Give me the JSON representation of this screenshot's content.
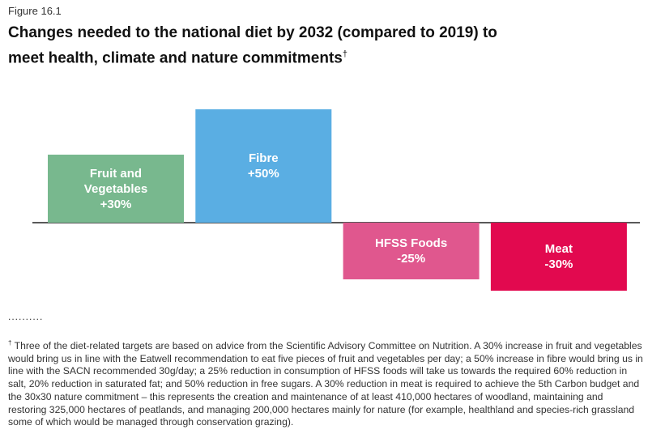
{
  "figure_label": "Figure 16.1",
  "chart_data": {
    "type": "bar",
    "title": "Changes needed to the national diet by 2032 (compared to 2019) to meet health, climate and nature commitments",
    "title_marker": "†",
    "categories": [
      "Fruit and Vegetables",
      "Fibre",
      "HFSS Foods",
      "Meat"
    ],
    "values": [
      30,
      50,
      -25,
      -30
    ],
    "value_labels": [
      "+30%",
      "+50%",
      "-25%",
      "-30%"
    ],
    "colors": [
      "#78b88e",
      "#5aaee3",
      "#e0578e",
      "#e2094f"
    ]
  },
  "footnote_marker": "†",
  "footnote": "Three of the diet-related targets are based on advice from the Scientific Advisory Committee on Nutrition. A 30% increase in fruit and vegetables would bring us in line with the Eatwell recommendation to eat five pieces of fruit and vegetables per day; a 50% increase in fibre would bring us in line with the SACN recommended 30g/day; a 25% reduction in consumption of HFSS foods will take us towards the required 60% reduction in salt, 20% reduction in saturated fat; and 50% reduction in free sugars. A 30% reduction in meat is required to achieve the 5th Carbon budget and the 30x30 nature commitment – this represents the creation and maintenance of at least 410,000 hectares of woodland, maintaining and restoring 325,000 hectares of peatlands, and managing 200,000 hectares mainly for nature (for example, healthland and species-rich grassland some of which would be managed through conservation grazing)."
}
